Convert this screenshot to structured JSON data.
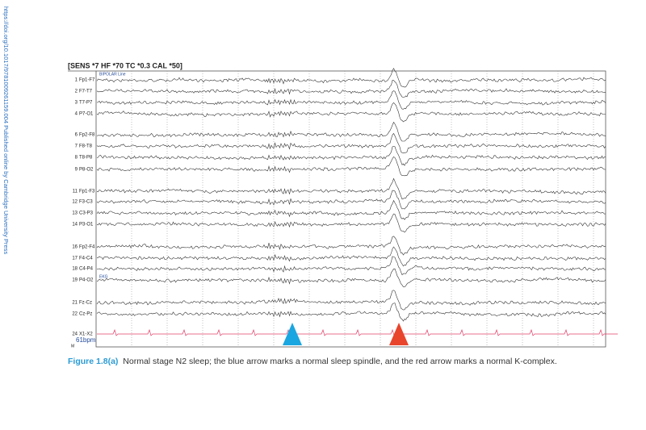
{
  "side_note": "https://doi.org/10.1017/9781009261159.004 Published online by Cambridge University Press",
  "header": "[SENS *7  HF *70  TC *0.3  CAL *50]",
  "montage": "BIPOLAR Line",
  "channels": [
    {
      "number": 1,
      "label": "Fp1-F7"
    },
    {
      "number": 2,
      "label": "F7-T7"
    },
    {
      "number": 3,
      "label": "T7-P7"
    },
    {
      "number": 4,
      "label": "P7-O1"
    },
    {
      "number": 6,
      "label": "Fp2-F8"
    },
    {
      "number": 7,
      "label": "F8-T8"
    },
    {
      "number": 8,
      "label": "T8-P8"
    },
    {
      "number": 9,
      "label": "P8-O2"
    },
    {
      "number": 11,
      "label": "Fp1-F3"
    },
    {
      "number": 12,
      "label": "F3-C3"
    },
    {
      "number": 13,
      "label": "C3-P3"
    },
    {
      "number": 14,
      "label": "P3-O1"
    },
    {
      "number": 16,
      "label": "Fp2-F4"
    },
    {
      "number": 17,
      "label": "F4-C4"
    },
    {
      "number": 18,
      "label": "C4-P4"
    },
    {
      "number": 19,
      "label": "P4-O2"
    },
    {
      "number": 21,
      "label": "Fz-Cz"
    },
    {
      "number": 22,
      "label": "Cz-Pz"
    },
    {
      "number": 24,
      "label": "X1-X2"
    }
  ],
  "ekg_label": "EKG",
  "heart_rate": "61bpm",
  "footer_mark": "M",
  "caption": {
    "label": "Figure 1.8(a)",
    "text": "Normal stage N2 sleep; the blue arrow marks a normal sleep spindle, and the red arrow marks a normal K-complex."
  }
}
